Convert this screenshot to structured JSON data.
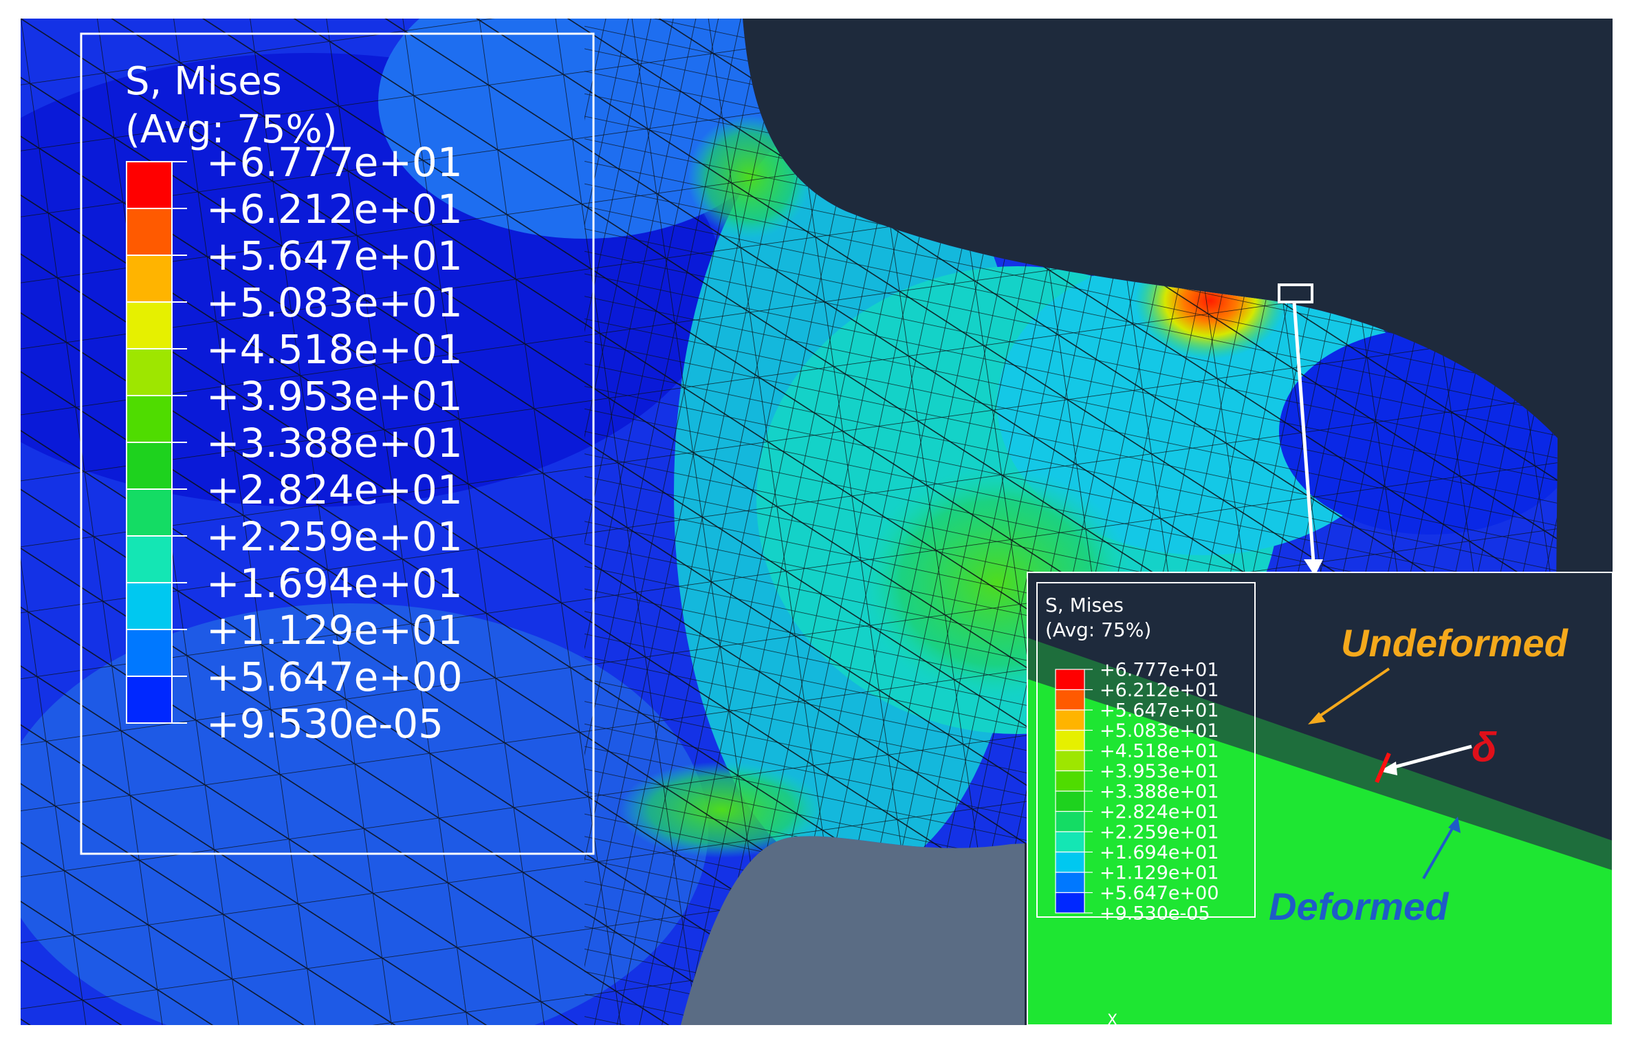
{
  "main_legend": {
    "title": "S, Mises",
    "subtitle": "(Avg: 75%)",
    "levels": [
      "+6.777e+01",
      "+6.212e+01",
      "+5.647e+01",
      "+5.083e+01",
      "+4.518e+01",
      "+3.953e+01",
      "+3.388e+01",
      "+2.824e+01",
      "+2.259e+01",
      "+1.694e+01",
      "+1.129e+01",
      "+5.647e+00",
      "+9.530e-05"
    ],
    "colors": [
      "#ff0000",
      "#ff5a00",
      "#ffb400",
      "#e6f000",
      "#9ee600",
      "#4fdc00",
      "#1ed21e",
      "#14dc64",
      "#14e6b4",
      "#00c8f0",
      "#0078ff",
      "#0028ff"
    ]
  },
  "inset_legend": {
    "title": "S, Mises",
    "subtitle": "(Avg: 75%)",
    "levels": [
      "+6.777e+01",
      "+6.212e+01",
      "+5.647e+01",
      "+5.083e+01",
      "+4.518e+01",
      "+3.953e+01",
      "+3.388e+01",
      "+2.824e+01",
      "+2.259e+01",
      "+1.694e+01",
      "+1.129e+01",
      "+5.647e+00",
      "+9.530e-05"
    ]
  },
  "annotations": {
    "undeformed": "Undeformed",
    "deformed": "Deformed",
    "delta": "δ",
    "axis_label": "X"
  },
  "colors": {
    "background_dark": "#1e2a3c",
    "mesh_blue": "#1432e6",
    "undeformed_label": "#f5a91c",
    "deformed_label": "#1e5bc8",
    "delta_label": "#e0101a"
  }
}
